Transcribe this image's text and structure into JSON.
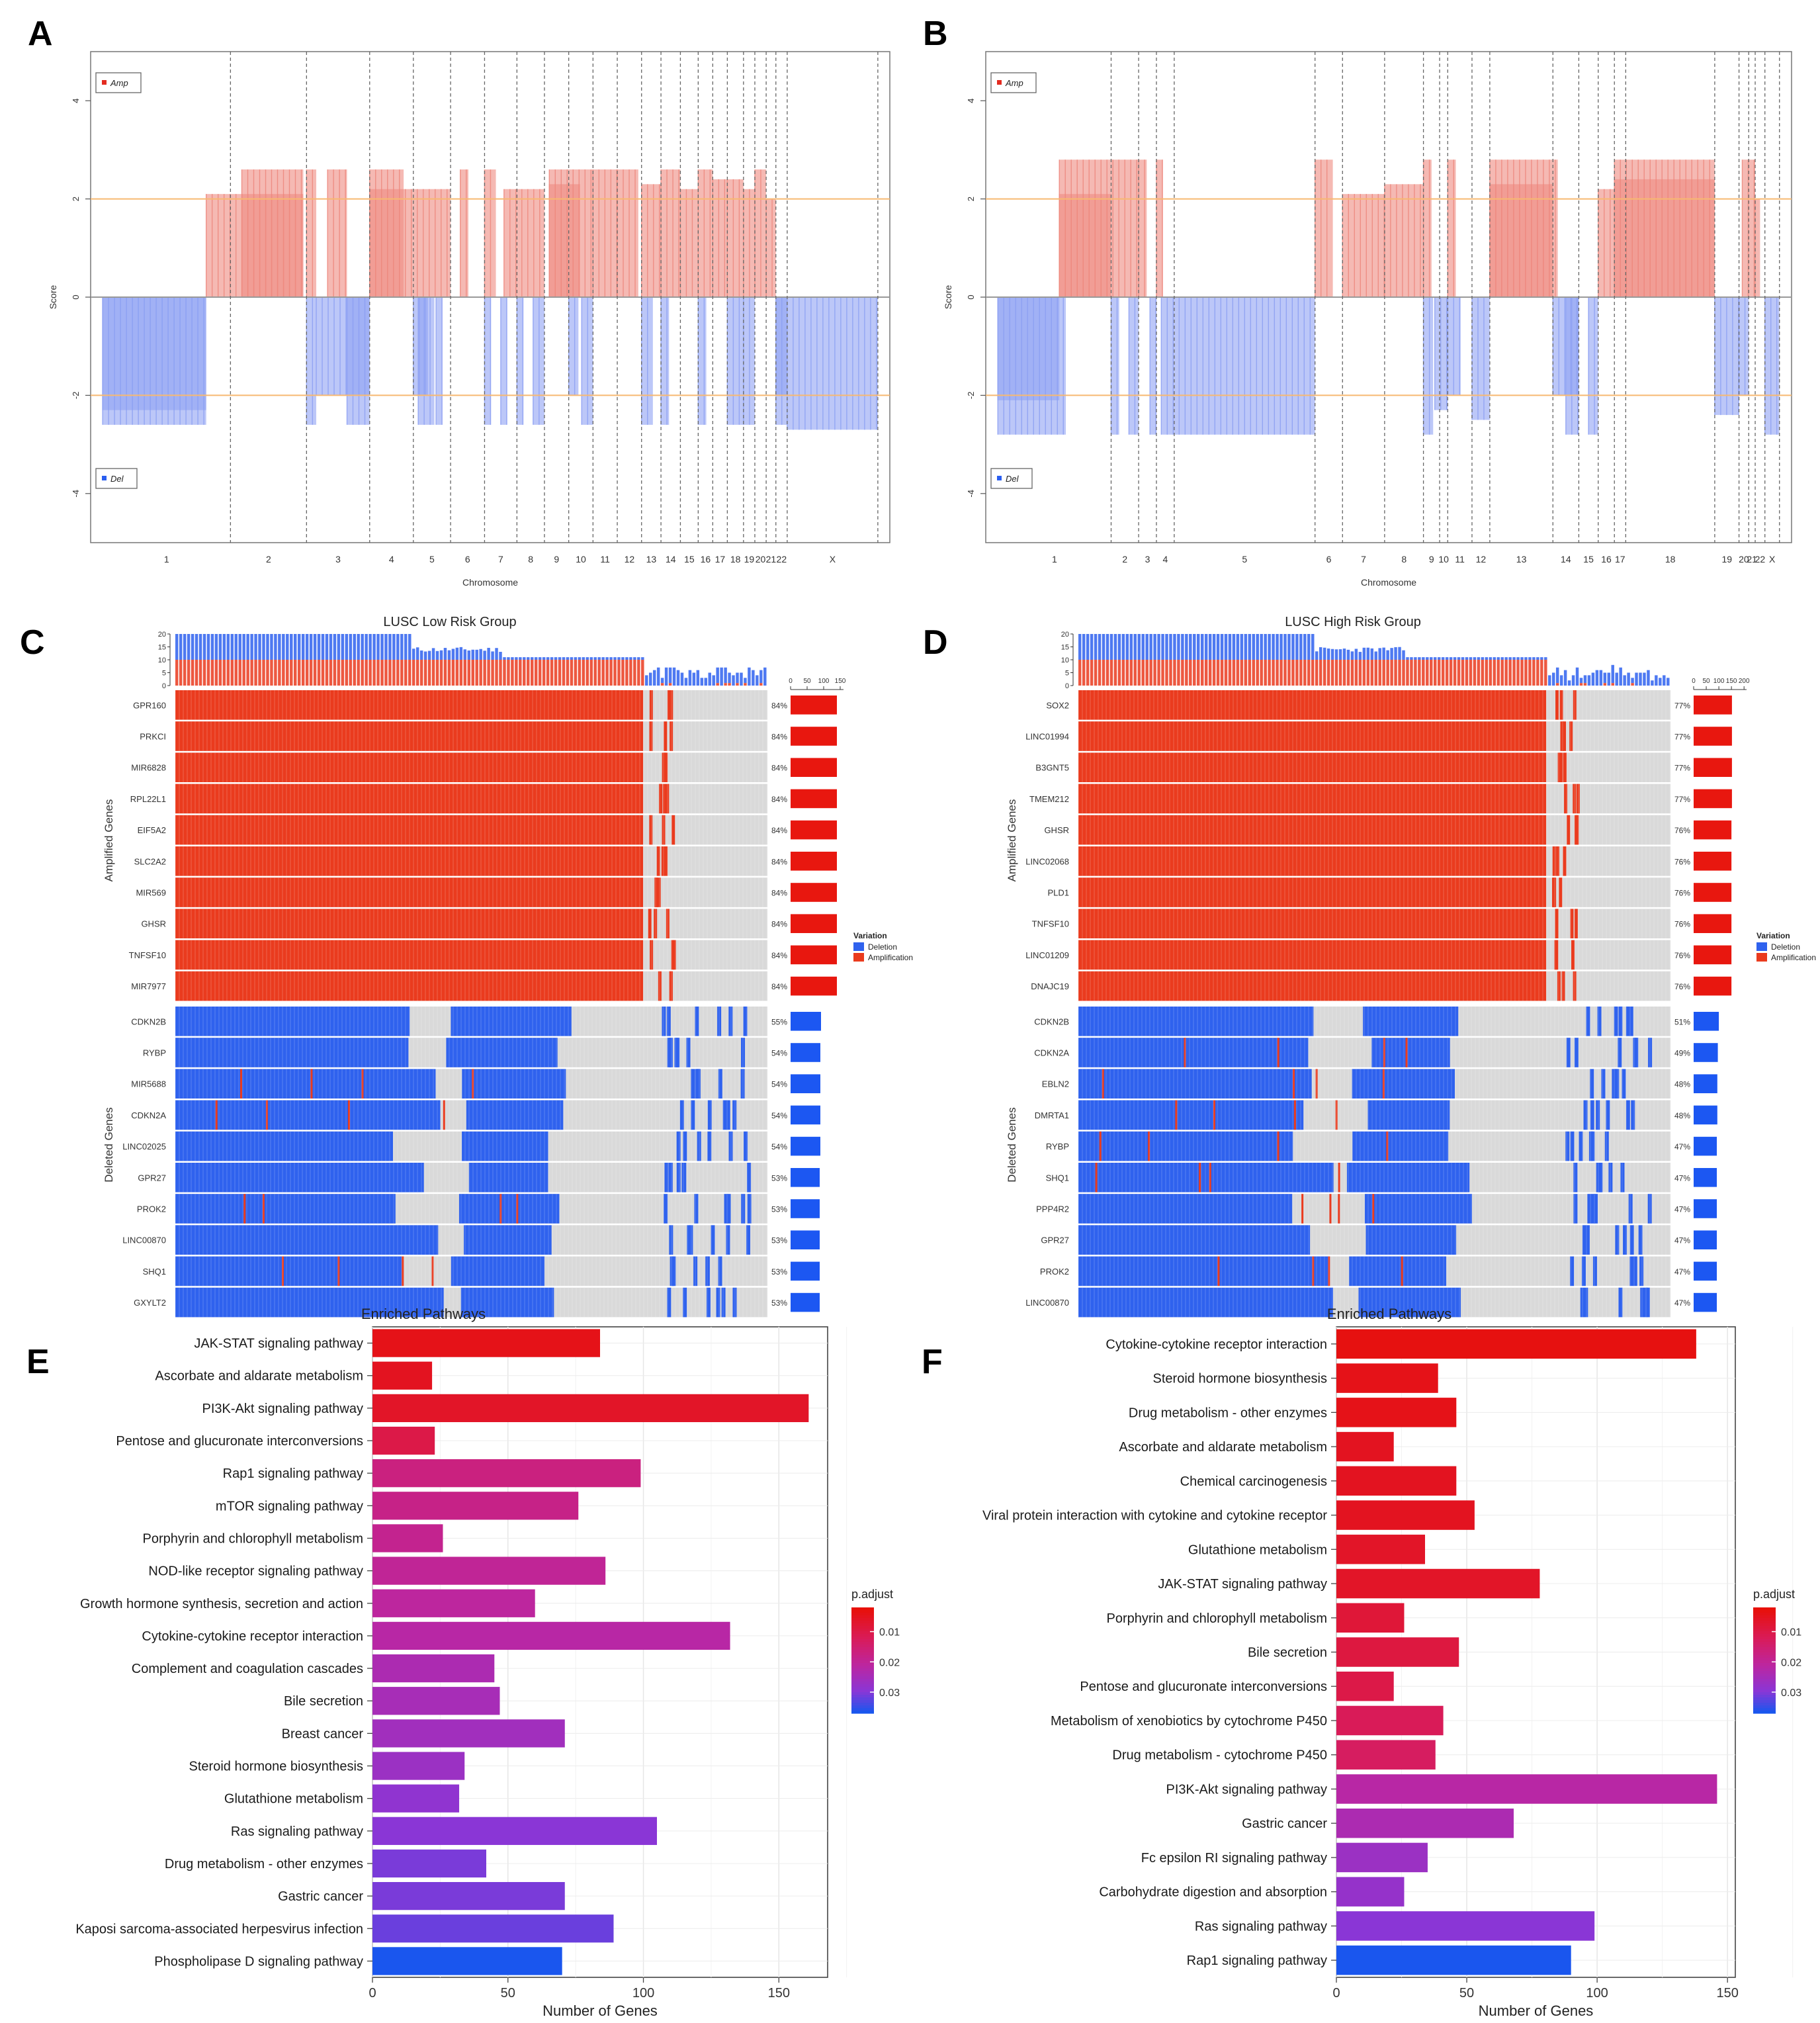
{
  "chart_data": [
    {
      "id": "A",
      "type": "bar",
      "panel_label": "A",
      "subtype": "genomic copy-number score plot",
      "ylabel": "Score",
      "xlabel": "Chromosome",
      "ylim": [
        -5,
        5
      ],
      "yticks": [
        -4,
        -2,
        0,
        2,
        4
      ],
      "threshold_lines": [
        2,
        -2
      ],
      "legend": [
        "Amp",
        "Del"
      ],
      "chromosomes": [
        "1",
        "2",
        "3",
        "4",
        "5",
        "6",
        "7",
        "8",
        "9",
        "10",
        "11",
        "12",
        "13",
        "14",
        "15",
        "16",
        "17",
        "18",
        "19",
        "20",
        "21",
        "22",
        "X"
      ],
      "chrom_bounds": [
        0,
        7.9,
        12.6,
        16.5,
        19.2,
        21.5,
        23.6,
        25.6,
        27.3,
        28.8,
        30.3,
        31.8,
        33.3,
        34.5,
        35.7,
        36.8,
        37.7,
        38.6,
        39.6,
        40.3,
        41.0,
        41.6,
        42.3,
        47.9
      ],
      "amp_segments": [
        [
          6.4,
          12.4,
          2.1
        ],
        [
          8.6,
          12.4,
          2.6
        ],
        [
          12.6,
          13.2,
          2.6
        ],
        [
          13.9,
          15.1,
          2.6
        ],
        [
          16.5,
          21.5,
          2.2
        ],
        [
          16.5,
          18.6,
          2.6
        ],
        [
          22.1,
          22.6,
          2.6
        ],
        [
          23.6,
          24.3,
          2.6
        ],
        [
          24.8,
          27.3,
          2.2
        ],
        [
          27.6,
          29.5,
          2.3
        ],
        [
          27.6,
          30.3,
          2.6
        ],
        [
          30.3,
          31.8,
          2.6
        ],
        [
          31.8,
          33.1,
          2.6
        ],
        [
          33.3,
          34.5,
          2.3
        ],
        [
          34.5,
          35.7,
          2.6
        ],
        [
          35.7,
          36.8,
          2.2
        ],
        [
          36.8,
          37.7,
          2.6
        ],
        [
          37.7,
          38.6,
          2.4
        ],
        [
          38.6,
          39.6,
          2.4
        ],
        [
          39.6,
          40.3,
          2.2
        ],
        [
          40.3,
          41.0,
          2.6
        ],
        [
          41.0,
          41.6,
          2.0
        ]
      ],
      "del_segments": [
        [
          0,
          6.4,
          -2.3
        ],
        [
          0,
          6.4,
          -2.6
        ],
        [
          12.6,
          13.2,
          -2.6
        ],
        [
          13.2,
          15.1,
          -2.0
        ],
        [
          15.1,
          16.5,
          -2.0
        ],
        [
          15.1,
          16.5,
          -2.6
        ],
        [
          19.2,
          20.1,
          -2.0
        ],
        [
          19.5,
          20.5,
          -2.6
        ],
        [
          20.6,
          21.0,
          -2.6
        ],
        [
          23.6,
          24.0,
          -2.6
        ],
        [
          24.6,
          25.0,
          -2.6
        ],
        [
          25.6,
          26.0,
          -2.6
        ],
        [
          26.6,
          27.3,
          -2.6
        ],
        [
          28.8,
          29.4,
          -2.0
        ],
        [
          29.6,
          30.3,
          -2.6
        ],
        [
          33.3,
          34.0,
          -2.6
        ],
        [
          34.5,
          35.0,
          -2.6
        ],
        [
          36.8,
          37.3,
          -2.6
        ],
        [
          38.6,
          39.6,
          -2.6
        ],
        [
          39.6,
          40.3,
          -2.6
        ],
        [
          41.6,
          42.3,
          -2.0
        ],
        [
          41.6,
          42.3,
          -2.6
        ],
        [
          42.3,
          47.9,
          -2.7
        ]
      ]
    },
    {
      "id": "B",
      "type": "bar",
      "panel_label": "B",
      "subtype": "genomic copy-number score plot",
      "ylabel": "Score",
      "xlabel": "Chromosome",
      "ylim": [
        -5,
        5
      ],
      "yticks": [
        -4,
        -2,
        0,
        2,
        4
      ],
      "threshold_lines": [
        2,
        -2
      ],
      "legend": [
        "Amp",
        "Del"
      ],
      "chromosomes": [
        "1",
        "2",
        "3",
        "4",
        "5",
        "6",
        "7",
        "8",
        "9",
        "10",
        "11",
        "12",
        "13",
        "14",
        "15",
        "16",
        "17",
        "18",
        "19",
        "20",
        "21",
        "22",
        "X"
      ],
      "chrom_bounds": [
        0,
        7.0,
        8.7,
        9.8,
        10.9,
        19.6,
        21.3,
        23.9,
        26.3,
        27.3,
        27.8,
        29.3,
        30.4,
        34.3,
        35.9,
        37.1,
        38.1,
        38.8,
        44.3,
        45.8,
        46.4,
        46.8,
        47.4,
        48.3
      ],
      "amp_segments": [
        [
          3.8,
          7.0,
          2.1
        ],
        [
          3.8,
          8.7,
          2.8
        ],
        [
          8.7,
          9.2,
          2.8
        ],
        [
          9.8,
          10.2,
          2.8
        ],
        [
          19.6,
          20.7,
          2.8
        ],
        [
          21.3,
          23.9,
          2.1
        ],
        [
          23.9,
          26.3,
          2.3
        ],
        [
          26.3,
          26.8,
          2.8
        ],
        [
          27.8,
          28.3,
          2.8
        ],
        [
          30.4,
          34.3,
          2.3
        ],
        [
          30.4,
          34.6,
          2.8
        ],
        [
          37.1,
          38.1,
          2.2
        ],
        [
          38.1,
          44.3,
          2.4
        ],
        [
          38.1,
          44.3,
          2.8
        ],
        [
          46.0,
          46.8,
          2.8
        ],
        [
          46.8,
          47.1,
          2.0
        ]
      ],
      "del_segments": [
        [
          0,
          3.8,
          -2.1
        ],
        [
          0,
          4.2,
          -2.8
        ],
        [
          7.0,
          7.5,
          -2.8
        ],
        [
          8.1,
          8.7,
          -2.8
        ],
        [
          9.4,
          9.8,
          -2.8
        ],
        [
          10.1,
          19.6,
          -2.8
        ],
        [
          26.3,
          26.9,
          -2.8
        ],
        [
          27.0,
          27.8,
          -2.3
        ],
        [
          27.8,
          28.6,
          -2.0
        ],
        [
          29.3,
          30.4,
          -2.5
        ],
        [
          34.3,
          35.9,
          -2.0
        ],
        [
          35.1,
          35.9,
          -2.8
        ],
        [
          36.5,
          37.1,
          -2.8
        ],
        [
          44.3,
          45.8,
          -2.4
        ],
        [
          45.8,
          46.4,
          -2.0
        ],
        [
          47.4,
          48.3,
          -2.8
        ]
      ]
    },
    {
      "id": "C",
      "type": "heatmap",
      "panel_label": "C",
      "title": "LUSC Low Risk Group",
      "subtype": "oncoprint",
      "top_bar_yticks": [
        "20",
        "15",
        "10",
        "5",
        "0"
      ],
      "side_axis_ticks": [
        "0",
        "50",
        "100",
        "150"
      ],
      "side_axis_max": 160,
      "n_samples": 198,
      "amplified_label": "Amplified Genes",
      "deleted_label": "Deleted Genes",
      "amplified_genes": [
        {
          "gene": "GPR160",
          "pct": "84%",
          "count": 140
        },
        {
          "gene": "PRKCI",
          "pct": "84%",
          "count": 140
        },
        {
          "gene": "MIR6828",
          "pct": "84%",
          "count": 140
        },
        {
          "gene": "RPL22L1",
          "pct": "84%",
          "count": 140
        },
        {
          "gene": "EIF5A2",
          "pct": "84%",
          "count": 140
        },
        {
          "gene": "SLC2A2",
          "pct": "84%",
          "count": 140
        },
        {
          "gene": "MIR569",
          "pct": "84%",
          "count": 140
        },
        {
          "gene": "GHSR",
          "pct": "84%",
          "count": 140
        },
        {
          "gene": "TNFSF10",
          "pct": "84%",
          "count": 140
        },
        {
          "gene": "MIR7977",
          "pct": "84%",
          "count": 140
        }
      ],
      "deleted_genes": [
        {
          "gene": "CDKN2B",
          "pct": "55%",
          "count": 92
        },
        {
          "gene": "RYBP",
          "pct": "54%",
          "count": 90
        },
        {
          "gene": "MIR5688",
          "pct": "54%",
          "count": 90
        },
        {
          "gene": "CDKN2A",
          "pct": "54%",
          "count": 90
        },
        {
          "gene": "LINC02025",
          "pct": "54%",
          "count": 90
        },
        {
          "gene": "GPR27",
          "pct": "53%",
          "count": 88
        },
        {
          "gene": "PROK2",
          "pct": "53%",
          "count": 88
        },
        {
          "gene": "LINC00870",
          "pct": "53%",
          "count": 88
        },
        {
          "gene": "SHQ1",
          "pct": "53%",
          "count": 88
        },
        {
          "gene": "GXYLT2",
          "pct": "53%",
          "count": 88
        }
      ],
      "legend_title": "Variation",
      "legend": [
        "Deletion",
        "Amplification"
      ]
    },
    {
      "id": "D",
      "type": "heatmap",
      "panel_label": "D",
      "title": "LUSC High Risk Group",
      "subtype": "oncoprint",
      "top_bar_yticks": [
        "20",
        "15",
        "10",
        "5",
        "0"
      ],
      "side_axis_ticks": [
        "0",
        "50",
        "100",
        "150",
        "200"
      ],
      "side_axis_max": 210,
      "n_samples": 200,
      "amplified_label": "Amplified Genes",
      "deleted_label": "Deleted Genes",
      "amplified_genes": [
        {
          "gene": "SOX2",
          "pct": "77%",
          "count": 152
        },
        {
          "gene": "LINC01994",
          "pct": "77%",
          "count": 152
        },
        {
          "gene": "B3GNT5",
          "pct": "77%",
          "count": 152
        },
        {
          "gene": "TMEM212",
          "pct": "77%",
          "count": 152
        },
        {
          "gene": "GHSR",
          "pct": "76%",
          "count": 150
        },
        {
          "gene": "LINC02068",
          "pct": "76%",
          "count": 150
        },
        {
          "gene": "PLD1",
          "pct": "76%",
          "count": 150
        },
        {
          "gene": "TNFSF10",
          "pct": "76%",
          "count": 150
        },
        {
          "gene": "LINC01209",
          "pct": "76%",
          "count": 150
        },
        {
          "gene": "DNAJC19",
          "pct": "76%",
          "count": 150
        }
      ],
      "deleted_genes": [
        {
          "gene": "CDKN2B",
          "pct": "51%",
          "count": 100
        },
        {
          "gene": "CDKN2A",
          "pct": "49%",
          "count": 96
        },
        {
          "gene": "EBLN2",
          "pct": "48%",
          "count": 94
        },
        {
          "gene": "DMRTA1",
          "pct": "48%",
          "count": 94
        },
        {
          "gene": "RYBP",
          "pct": "47%",
          "count": 92
        },
        {
          "gene": "SHQ1",
          "pct": "47%",
          "count": 92
        },
        {
          "gene": "PPP4R2",
          "pct": "47%",
          "count": 92
        },
        {
          "gene": "GPR27",
          "pct": "47%",
          "count": 92
        },
        {
          "gene": "PROK2",
          "pct": "47%",
          "count": 92
        },
        {
          "gene": "LINC00870",
          "pct": "47%",
          "count": 92
        }
      ],
      "legend_title": "Variation",
      "legend": [
        "Deletion",
        "Amplification"
      ]
    },
    {
      "id": "E",
      "type": "bar",
      "orientation": "horizontal",
      "panel_label": "E",
      "title": "Enriched Pathways",
      "xlabel": "Number of Genes",
      "xlim": [
        0,
        168
      ],
      "xticks": [
        0,
        50,
        100,
        150
      ],
      "color_legend_title": "p.adjust",
      "color_legend_ticks": [
        "0.01",
        "0.02",
        "0.03"
      ],
      "color_range": [
        0.002,
        0.037
      ],
      "categories": [
        "JAK-STAT signaling pathway",
        "Ascorbate and aldarate metabolism",
        "PI3K-Akt signaling pathway",
        "Pentose and glucuronate interconversions",
        "Rap1 signaling pathway",
        "mTOR signaling pathway",
        "Porphyrin and chlorophyll metabolism",
        "NOD-like receptor signaling pathway",
        "Growth hormone synthesis, secretion and action",
        "Cytokine-cytokine receptor interaction",
        "Complement and coagulation cascades",
        "Bile secretion",
        "Breast cancer",
        "Steroid hormone biosynthesis",
        "Glutathione metabolism",
        "Ras signaling pathway",
        "Drug metabolism - other enzymes",
        "Gastric cancer",
        "Kaposi sarcoma-associated herpesvirus infection",
        "Phospholipase D signaling pathway"
      ],
      "values": [
        84,
        22,
        161,
        23,
        99,
        76,
        26,
        86,
        60,
        132,
        45,
        47,
        71,
        34,
        32,
        105,
        42,
        71,
        89,
        70
      ],
      "p_adjust": [
        0.004,
        0.005,
        0.006,
        0.01,
        0.017,
        0.018,
        0.019,
        0.02,
        0.021,
        0.022,
        0.024,
        0.025,
        0.026,
        0.027,
        0.029,
        0.03,
        0.031,
        0.031,
        0.032,
        0.037
      ]
    },
    {
      "id": "F",
      "type": "bar",
      "orientation": "horizontal",
      "panel_label": "F",
      "title": "Enriched Pathways",
      "xlabel": "Number of Genes",
      "xlim": [
        0,
        153
      ],
      "xticks": [
        0,
        50,
        100,
        150
      ],
      "color_legend_title": "p.adjust",
      "color_legend_ticks": [
        "0.01",
        "0.02",
        "0.03"
      ],
      "color_range": [
        0.002,
        0.037
      ],
      "categories": [
        "Cytokine-cytokine receptor interaction",
        "Steroid hormone biosynthesis",
        "Drug metabolism - other enzymes",
        "Ascorbate and aldarate metabolism",
        "Chemical carcinogenesis",
        "Viral protein interaction with cytokine and cytokine receptor",
        "Glutathione metabolism",
        "JAK-STAT signaling pathway",
        "Porphyrin and chlorophyll metabolism",
        "Bile secretion",
        "Pentose and glucuronate interconversions",
        "Metabolism of xenobiotics by cytochrome P450",
        "Drug metabolism - cytochrome P450",
        "PI3K-Akt signaling pathway",
        "Gastric cancer",
        "Fc epsilon RI signaling pathway",
        "Carbohydrate digestion and absorption",
        "Ras signaling pathway",
        "Rap1 signaling pathway"
      ],
      "values": [
        138,
        39,
        46,
        22,
        46,
        53,
        34,
        78,
        26,
        47,
        22,
        41,
        38,
        146,
        68,
        35,
        26,
        99,
        90
      ],
      "p_adjust": [
        0.003,
        0.004,
        0.004,
        0.005,
        0.005,
        0.005,
        0.006,
        0.006,
        0.008,
        0.009,
        0.01,
        0.012,
        0.013,
        0.022,
        0.024,
        0.027,
        0.028,
        0.03,
        0.037
      ]
    }
  ]
}
